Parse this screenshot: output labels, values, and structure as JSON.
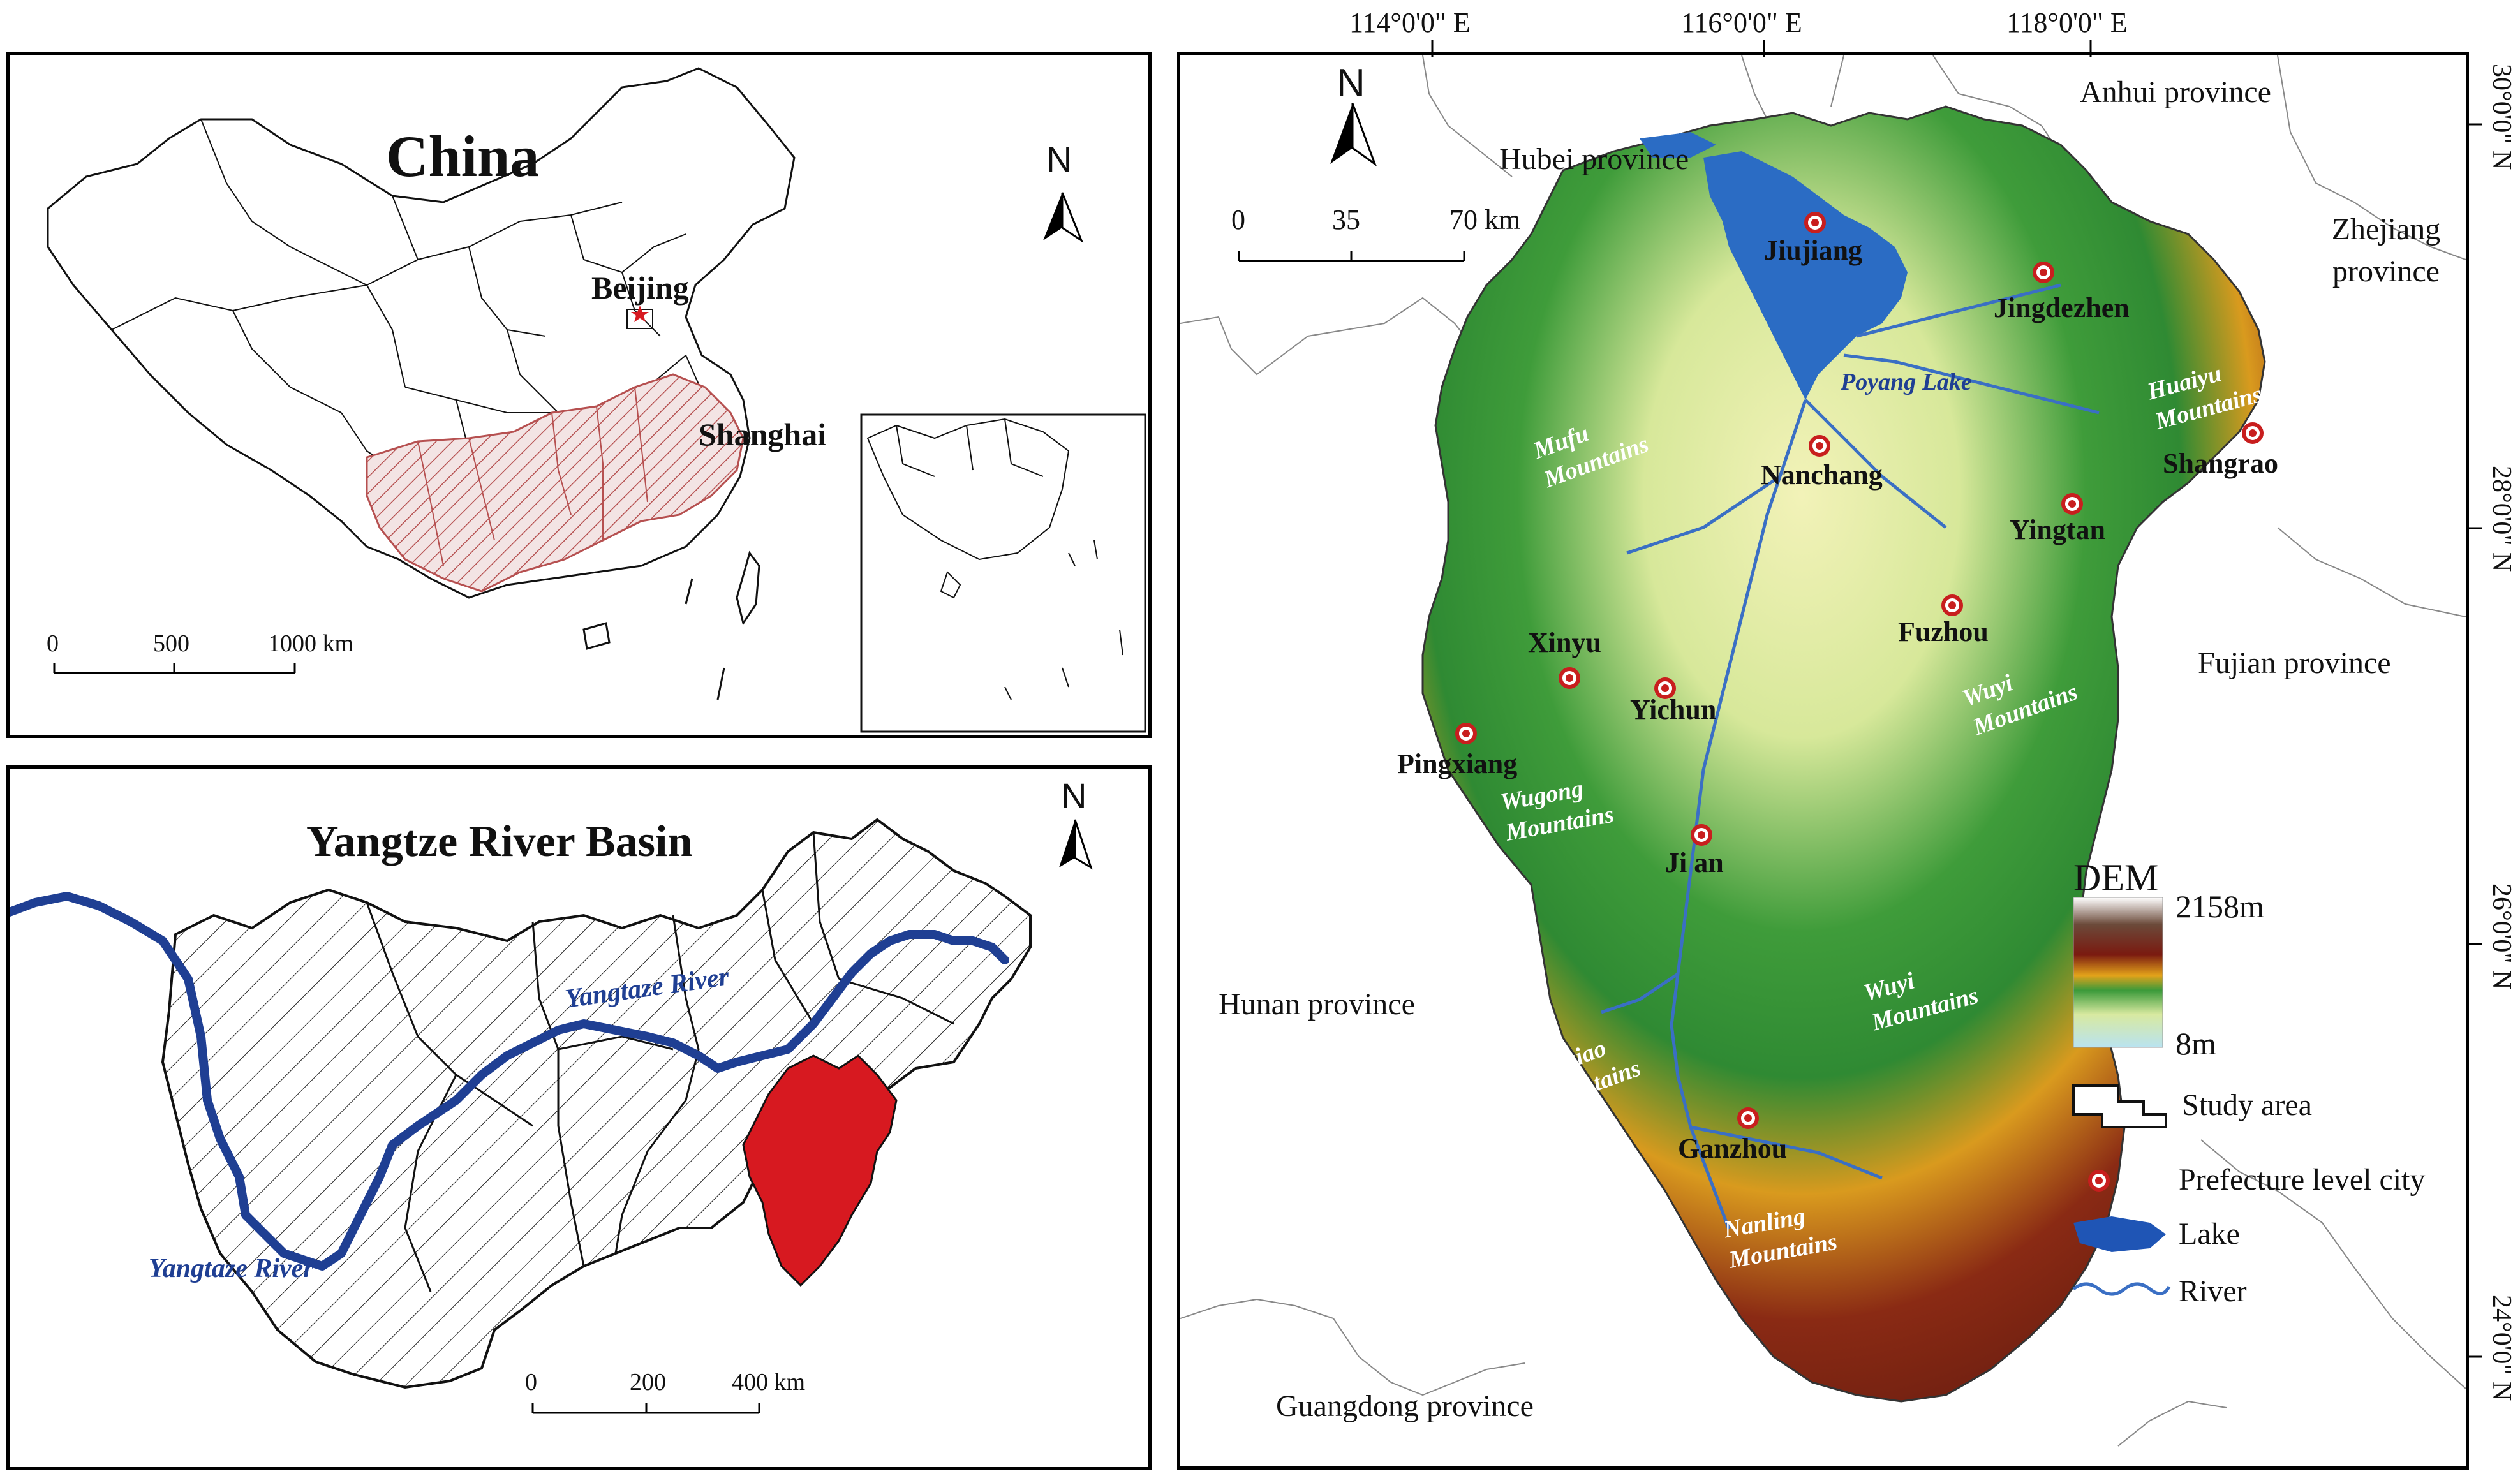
{
  "china_panel": {
    "title": "China",
    "cities": {
      "beijing": "Beijing",
      "shanghai": "Shanghai"
    },
    "north": "N",
    "scale": {
      "ticks": [
        "0",
        "500",
        "1000 km"
      ]
    }
  },
  "basin_panel": {
    "title": "Yangtze River Basin",
    "river_labels": [
      "Yangtaze River",
      "Yangtaze River"
    ],
    "north": "N",
    "scale": {
      "ticks": [
        "0",
        "200",
        "400 km"
      ]
    }
  },
  "main_map": {
    "north": "N",
    "scale": {
      "ticks": [
        "0",
        "35",
        "70 km"
      ]
    },
    "longitude_labels": [
      "114°0'0\" E",
      "116°0'0\" E",
      "118°0'0\" E"
    ],
    "latitude_labels": [
      "30°0'0\" N",
      "28°0'0\" N",
      "26°0'0\" N",
      "24°0'0\" N"
    ],
    "provinces": {
      "anhui": "Anhui province",
      "hubei": "Hubei province",
      "zhejiang": "Zhejiang province",
      "fujian": "Fujian province",
      "hunan": "Hunan province",
      "guangdong": "Guangdong province"
    },
    "cities": {
      "jiujiang": "Jiujiang",
      "jingdezhen": "Jingdezhen",
      "nanchang": "Nanchang",
      "shangrao": "Shangrao",
      "yingtan": "Yingtan",
      "fuzhou": "Fuzhou",
      "xinyu": "Xinyu",
      "yichun": "Yichun",
      "pingxiang": "Pingxiang",
      "jian": "Ji an",
      "ganzhou": "Ganzhou"
    },
    "features": {
      "poyang_lake": "Poyang Lake",
      "mufu_mountains": "Mufu Mountains",
      "huaiyu_mountains": "Huaiyu Mountains",
      "wuyi_north": "Wuyi Mountains",
      "wugong_mountains": "Wugong Mountains",
      "wuyi_south": "Wuyi Mountains",
      "luoxiao_mountains": "Luoxiao Mountains",
      "nanling_mountains": "Nanling Mountains"
    },
    "legend": {
      "title": "DEM",
      "max": "2158m",
      "min": "8m",
      "study_area": "Study area",
      "city": "Prefecture level city",
      "lake": "Lake",
      "river": "River"
    }
  },
  "colors": {
    "hatched_region": "#b65050",
    "jiangxi_fill": "#d71920",
    "river_dark_blue": "#1f3f93",
    "lake_blue": "#2b6cc4",
    "city_red": "#c81e1e"
  }
}
